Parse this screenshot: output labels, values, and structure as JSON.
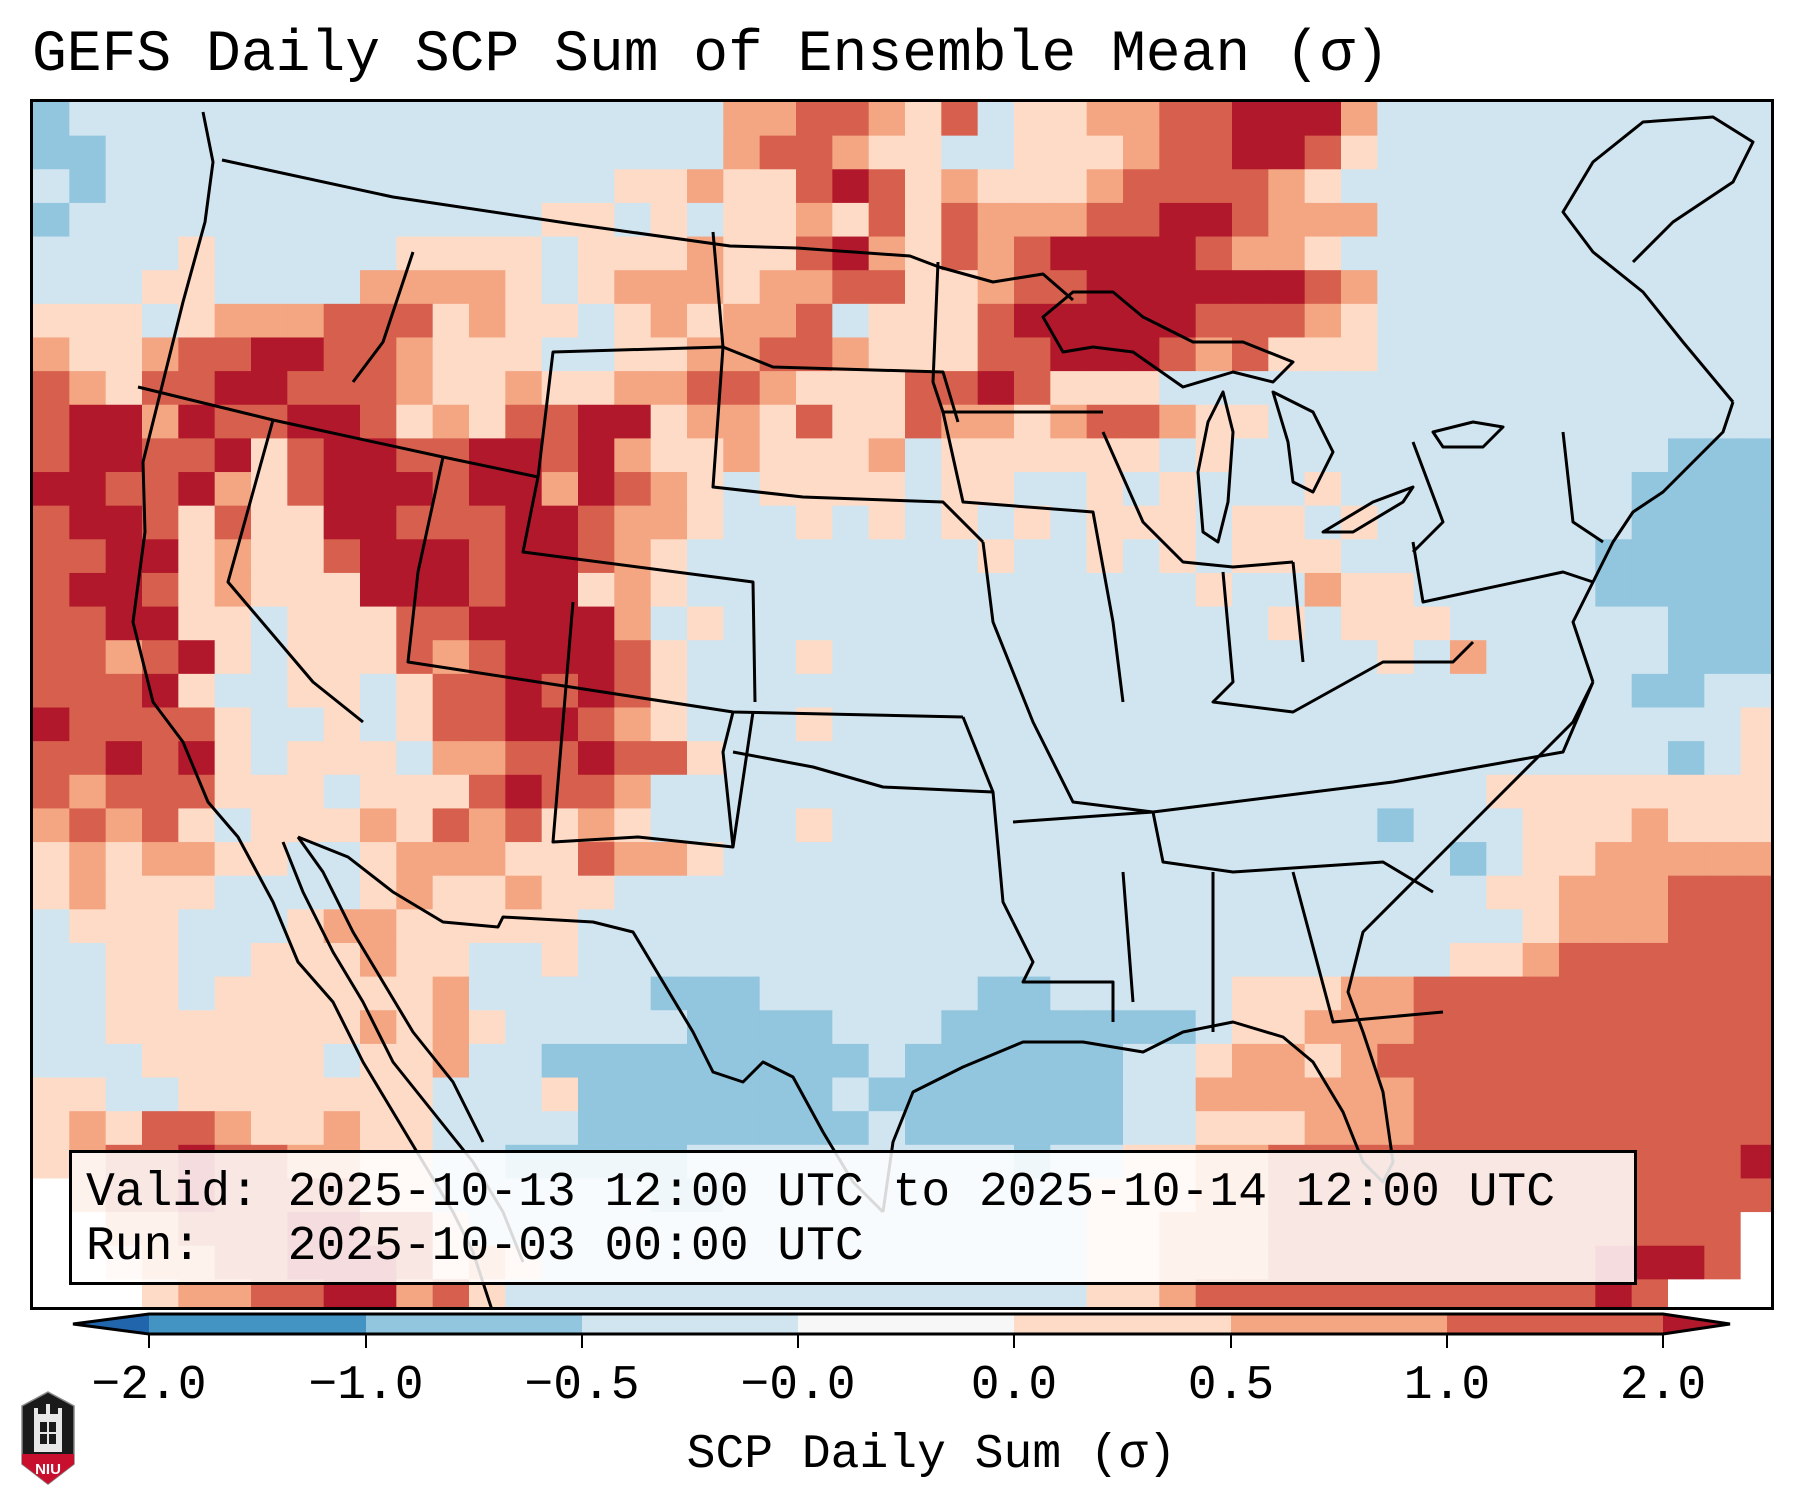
{
  "title": "GEFS Daily SCP Sum of Ensemble Mean (σ)",
  "info_box": {
    "valid_line": "Valid: 2025-10-13 12:00 UTC to 2025-10-14 12:00 UTC",
    "run_line": "Run:   2025-10-03 00:00 UTC"
  },
  "logo": {
    "text": "NIU",
    "icon": "niu-logo-icon"
  },
  "colorbar": {
    "label": "SCP Daily Sum (σ)",
    "tick_labels": [
      "−2.0",
      "−1.0",
      "−0.5",
      "−0.0",
      "0.0",
      "0.5",
      "1.0",
      "2.0"
    ],
    "extend_low_color": "#2166ac",
    "extend_high_color": "#b2182b",
    "bin_colors": [
      "#4393c3",
      "#92c5de",
      "#d1e5f0",
      "#f7f7f7",
      "#fddbc7",
      "#f4a582",
      "#d6604d"
    ]
  },
  "chart_data": {
    "type": "heatmap",
    "title": "GEFS Daily SCP Sum of Ensemble Mean (σ)",
    "colorbar_label": "SCP Daily Sum (σ)",
    "levels": [
      -2.0,
      -1.0,
      -0.5,
      -0.0,
      0.0,
      0.5,
      1.0,
      2.0
    ],
    "extend": "both",
    "region": "CONUS with adjacent Canada, Mexico, Gulf of Mexico and western Atlantic",
    "valid": "2025-10-13 12:00 UTC to 2025-10-14 12:00 UTC",
    "run": "2025-10-03 00:00 UTC",
    "legend": {
      "B": {
        "range": "-1.0 to -0.5",
        "color": "#92c5de"
      },
      "l": {
        "range": "-0.5 to -0.0",
        "color": "#d1e5f0"
      },
      "p": {
        "range": "0.0 to 0.5",
        "color": "#fddbc7"
      },
      "o": {
        "range": "0.5 to 1.0",
        "color": "#f4a582"
      },
      "r": {
        "range": "1.0 to 2.0",
        "color": "#d6604d"
      },
      "d": {
        "range": "> 2.0",
        "color": "#b2182b"
      },
      "w": {
        "range": "outside domain",
        "color": "#ffffff"
      }
    },
    "grid_rows": [
      "Blllllllllllllllllloorroprlppoorrdddolllllllllll",
      "BBlllllllllllllllllorroppllppporrddrplllllllllll",
      "lBllllllllllllllppopprdrpoppporrrropllllllllllll",
      "Blllllllllllllpplplppoprprooorrddroooll lllllllll",
      "llllplllllpppplpppopprdoprorddddroopllllllllllll",
      "lllppllllooooplpooopoorrpporrddddddrolllllllllll",
      "ppplpooorrrpopplpopoorlppprdddddrrroplllllllllll",
      "opporrddrropppllppoorroppprrdddrorppplllllllllll",
      "roprrddrrroppoppoorroppprrdrppplllllllllllllllll",
      "rddodrrddrpoprrddpooprpprooporroppllllllllllllll",
      "rddrrdprddrrddrdoppopppolpppppplpllllllllllllBBB",
      "ddrrdoprdddrddodroplpppplppllplplllpllllllllBBBB",
      "rddrprppddrrrddroopllplplplplppplpplplllllllBBBBB",
      "rrddpopprdddrddropllllllllpllplplppplllllllBBBBB",
      "rddrpopppdddrddpopllllllllllllllpllopplllllBBBBBB",
      "rrddppl pppr rddddolplllllllllllllllplpppllllllBBBBBl",
      "rrordplppprordddrplllplllllllllllllllplolllllBBBBlll",
      "rrrdpllpplprrdrdrpllllllllllllllllllllllllllBBlllll",
      "drrrrpllplprrddroplllplllllllllllllllllllllllllplll",
      "rrdrdplppploorrdrrpllllllllllllllllllllllllllBlpp",
      "rorrrppplppprdrrolllllllllllllllllllllllppppppp",
      "ororplpppoprorpopllllplllllllllllllllBlllpppoppppp",
      "popooppllpooopproopllllllllllllllllllllBlppoooooopop",
      "popppllllpoppoppllllllllllllllllllllllllppooorrrooor",
      "lppplllpoopppppllllllllllllllllllllllllllpooorrrrrrrr",
      "llppllpppoppllpllllllllllllllllllllllllpporrrrrrrprr",
      "llpplppppppolllllBBBllllllBBlllllpppoorrrrrrrrrrrr",
      "llpppppppopoplllllBBBBlllBBBBBBBlppooorrrrrrrrrrrr",
      "lllppppplppollBBBBBBBBBlBBBBBBllpooporrrrrrrrrrrr",
      "ppllppppppplllpBBBBBBBlBBBBBBBlloooooorrrrrrrrrrrr",
      "poprroppoppllllBBBBBBBBlBBBBBBllpppooorrrrrrrrrrrrr",
      "porrdrrooppllBBBBBlllllllllBllppoorrrrrrrrrrrrrdr",
      "worrdrrrrppllllllBBllllllllllpppoorrrrrrrrrrrrrrr",
      "wwoorrrddrrplllllllllllllllllppooorrrrrrrrrrrrrw",
      "wwpoorrdddrpoplllllllllllllllppooorrrrrrrrrdddrww",
      "wwwpoorrddorpllllllllllllllllpporrrrrrrrrrrdrwwww"
    ]
  }
}
